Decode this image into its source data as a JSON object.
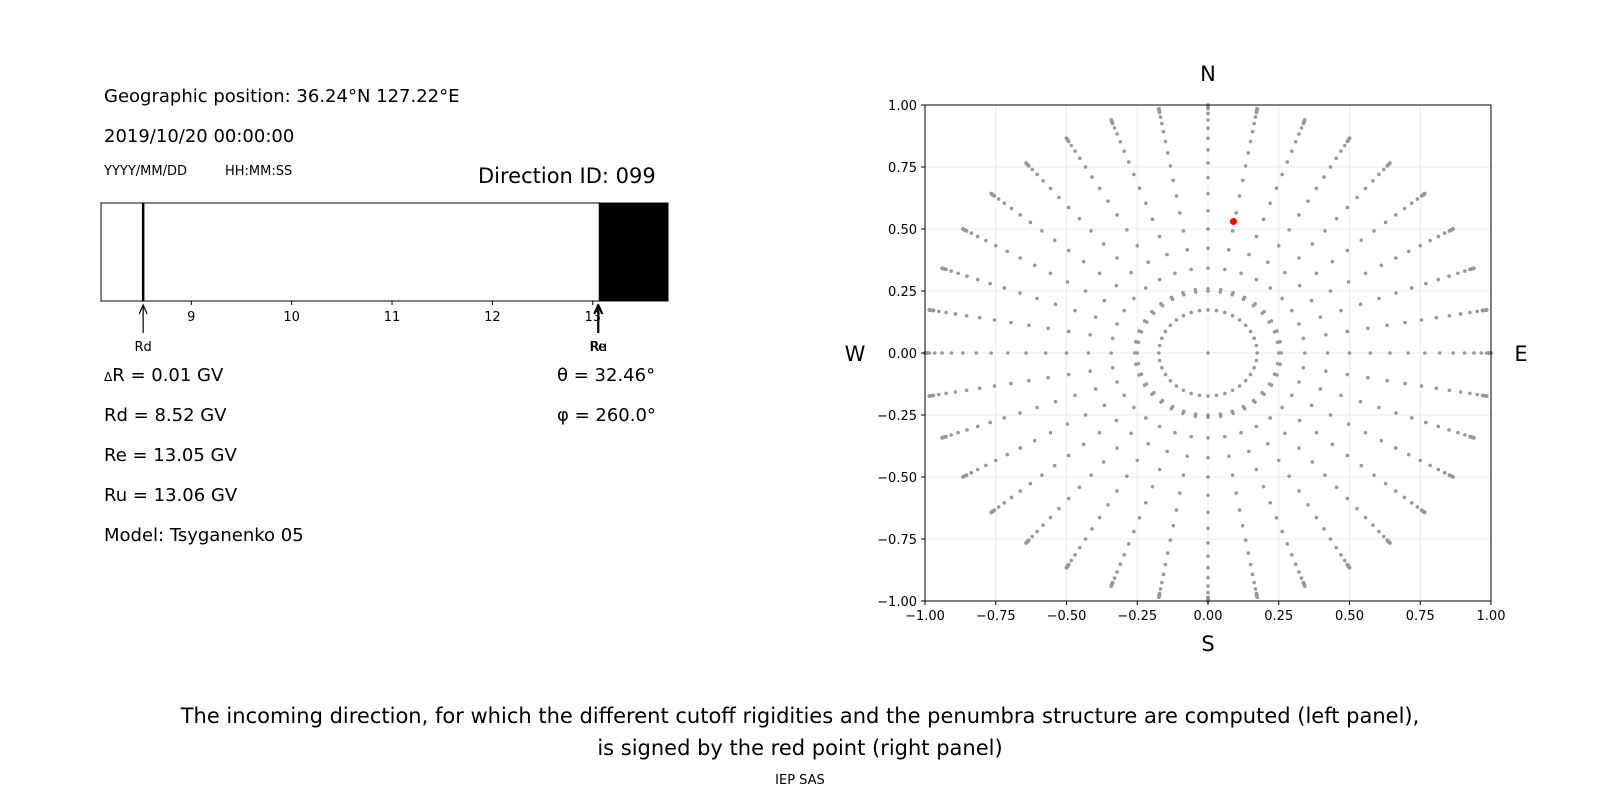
{
  "left_panel": {
    "geo_position": "Geographic position: 36.24°N 127.22°E",
    "datetime": "2019/10/20 00:00:00",
    "date_format": "YYYY/MM/DD",
    "time_format": "HH:MM:SS",
    "direction_id": "Direction ID: 099",
    "delta_r": "R = 0.01 GV",
    "delta_symbol": "Δ",
    "rd": "Rd = 8.52 GV",
    "re": "Re = 13.05 GV",
    "ru": "Ru = 13.06 GV",
    "model": "Model: Tsyganenko 05",
    "theta": "θ = 32.46°",
    "phi": "φ = 260.0°"
  },
  "chart_data": [
    {
      "type": "bar",
      "name": "penumbra",
      "xlim": [
        8.1,
        13.75
      ],
      "ticks": [
        "9",
        "10",
        "11",
        "12",
        "13"
      ],
      "tick_values": [
        9,
        10,
        11,
        12,
        13
      ],
      "allowed_bands": [
        [
          13.06,
          13.75
        ]
      ],
      "forbidden_lines": [
        8.52
      ],
      "markers": [
        {
          "label": "Rd",
          "value": 8.52
        },
        {
          "label": "Re",
          "value": 13.05
        },
        {
          "label": "Ru",
          "value": 13.06
        }
      ],
      "band_color": "#000000"
    },
    {
      "type": "scatter",
      "name": "directions",
      "xlim": [
        -1.0,
        1.0
      ],
      "ylim": [
        -1.0,
        1.0
      ],
      "x_ticks": [
        "−1.00",
        "−0.75",
        "−0.50",
        "−0.25",
        "0.00",
        "0.25",
        "0.50",
        "0.75",
        "1.00"
      ],
      "y_ticks": [
        "1.00",
        "0.75",
        "0.50",
        "0.25",
        "0.00",
        "−0.25",
        "−0.50",
        "−0.75",
        "−1.00"
      ],
      "tick_values": [
        -1.0,
        -0.75,
        -0.5,
        -0.25,
        0,
        0.25,
        0.5,
        0.75,
        1.0
      ],
      "grid": true,
      "compass": {
        "n": "N",
        "s": "S",
        "w": "W",
        "e": "E"
      },
      "grid_point_color": "#999999",
      "selected_point": {
        "x": 0.09,
        "y": 0.53,
        "color": "#ff0000"
      },
      "rays": 36,
      "ray_step_deg": 10
    }
  ],
  "caption": {
    "line1": "The incoming direction, for which the different cutoff rigidities and the penumbra structure are computed (left panel),",
    "line2": "is signed by the red point (right panel)"
  },
  "footer": "IEP SAS"
}
